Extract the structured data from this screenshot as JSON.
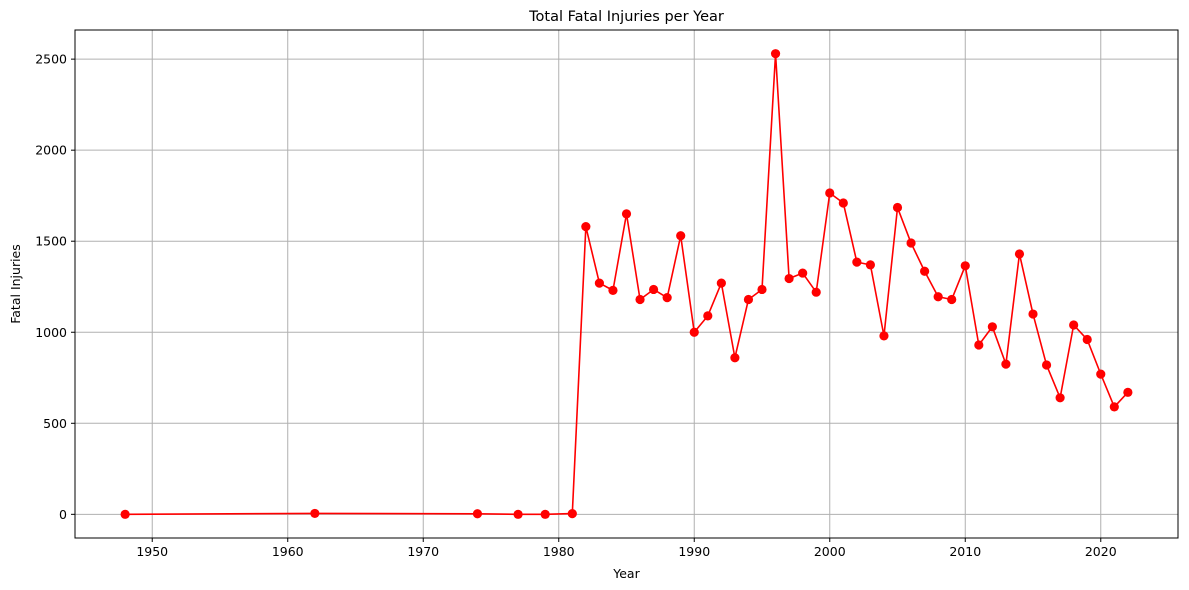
{
  "chart_data": {
    "type": "line",
    "title": "Total Fatal Injuries per Year",
    "xlabel": "Year",
    "ylabel": "Fatal Injuries",
    "xlim": [
      1944.3,
      2025.7
    ],
    "ylim": [
      -130,
      2660
    ],
    "xticks": [
      1950,
      1960,
      1970,
      1980,
      1990,
      2000,
      2010,
      2020
    ],
    "yticks": [
      0,
      500,
      1000,
      1500,
      2000,
      2500
    ],
    "grid": true,
    "line_color": "#ff0000",
    "marker": "circle",
    "series": [
      {
        "x": [
          1948,
          1962,
          1974,
          1977,
          1979,
          1981,
          1982,
          1983,
          1984,
          1985,
          1986,
          1987,
          1988,
          1989,
          1990,
          1991,
          1992,
          1993,
          1994,
          1995,
          1996,
          1997,
          1998,
          1999,
          2000,
          2001,
          2002,
          2003,
          2004,
          2005,
          2006,
          2007,
          2008,
          2009,
          2010,
          2011,
          2012,
          2013,
          2014,
          2015,
          2016,
          2017,
          2018,
          2019,
          2020,
          2021,
          2022
        ],
        "y": [
          0,
          5,
          3,
          0,
          0,
          4,
          1580,
          1270,
          1230,
          1650,
          1180,
          1235,
          1190,
          1530,
          1000,
          1090,
          1270,
          860,
          1180,
          1235,
          2530,
          1295,
          1325,
          1220,
          1765,
          1710,
          1385,
          1370,
          980,
          1685,
          1490,
          1335,
          1195,
          1180,
          1365,
          930,
          1030,
          825,
          1430,
          1100,
          820,
          640,
          1040,
          960,
          770,
          590,
          670
        ]
      }
    ]
  }
}
